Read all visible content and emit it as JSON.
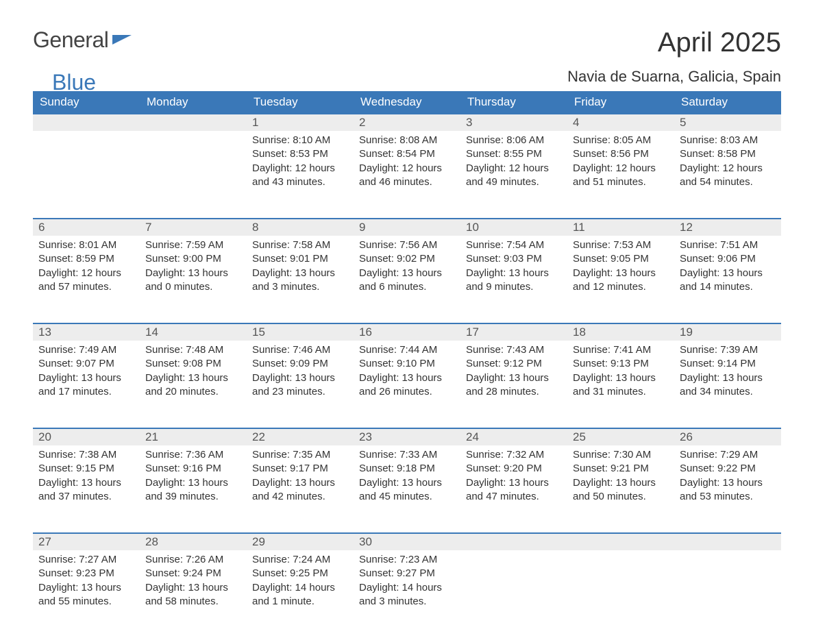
{
  "brand": {
    "part1": "General",
    "part2": "Blue"
  },
  "title": "April 2025",
  "location": "Navia de Suarna, Galicia, Spain",
  "colors": {
    "header_bg": "#3a78b8",
    "header_text": "#ffffff",
    "daynum_bg": "#ededed",
    "row_border": "#3a78b8",
    "body_text": "#333333",
    "page_bg": "#ffffff"
  },
  "weekdays": [
    "Sunday",
    "Monday",
    "Tuesday",
    "Wednesday",
    "Thursday",
    "Friday",
    "Saturday"
  ],
  "weeks": [
    [
      null,
      null,
      {
        "n": "1",
        "sunrise": "8:10 AM",
        "sunset": "8:53 PM",
        "daylight": "12 hours and 43 minutes."
      },
      {
        "n": "2",
        "sunrise": "8:08 AM",
        "sunset": "8:54 PM",
        "daylight": "12 hours and 46 minutes."
      },
      {
        "n": "3",
        "sunrise": "8:06 AM",
        "sunset": "8:55 PM",
        "daylight": "12 hours and 49 minutes."
      },
      {
        "n": "4",
        "sunrise": "8:05 AM",
        "sunset": "8:56 PM",
        "daylight": "12 hours and 51 minutes."
      },
      {
        "n": "5",
        "sunrise": "8:03 AM",
        "sunset": "8:58 PM",
        "daylight": "12 hours and 54 minutes."
      }
    ],
    [
      {
        "n": "6",
        "sunrise": "8:01 AM",
        "sunset": "8:59 PM",
        "daylight": "12 hours and 57 minutes."
      },
      {
        "n": "7",
        "sunrise": "7:59 AM",
        "sunset": "9:00 PM",
        "daylight": "13 hours and 0 minutes."
      },
      {
        "n": "8",
        "sunrise": "7:58 AM",
        "sunset": "9:01 PM",
        "daylight": "13 hours and 3 minutes."
      },
      {
        "n": "9",
        "sunrise": "7:56 AM",
        "sunset": "9:02 PM",
        "daylight": "13 hours and 6 minutes."
      },
      {
        "n": "10",
        "sunrise": "7:54 AM",
        "sunset": "9:03 PM",
        "daylight": "13 hours and 9 minutes."
      },
      {
        "n": "11",
        "sunrise": "7:53 AM",
        "sunset": "9:05 PM",
        "daylight": "13 hours and 12 minutes."
      },
      {
        "n": "12",
        "sunrise": "7:51 AM",
        "sunset": "9:06 PM",
        "daylight": "13 hours and 14 minutes."
      }
    ],
    [
      {
        "n": "13",
        "sunrise": "7:49 AM",
        "sunset": "9:07 PM",
        "daylight": "13 hours and 17 minutes."
      },
      {
        "n": "14",
        "sunrise": "7:48 AM",
        "sunset": "9:08 PM",
        "daylight": "13 hours and 20 minutes."
      },
      {
        "n": "15",
        "sunrise": "7:46 AM",
        "sunset": "9:09 PM",
        "daylight": "13 hours and 23 minutes."
      },
      {
        "n": "16",
        "sunrise": "7:44 AM",
        "sunset": "9:10 PM",
        "daylight": "13 hours and 26 minutes."
      },
      {
        "n": "17",
        "sunrise": "7:43 AM",
        "sunset": "9:12 PM",
        "daylight": "13 hours and 28 minutes."
      },
      {
        "n": "18",
        "sunrise": "7:41 AM",
        "sunset": "9:13 PM",
        "daylight": "13 hours and 31 minutes."
      },
      {
        "n": "19",
        "sunrise": "7:39 AM",
        "sunset": "9:14 PM",
        "daylight": "13 hours and 34 minutes."
      }
    ],
    [
      {
        "n": "20",
        "sunrise": "7:38 AM",
        "sunset": "9:15 PM",
        "daylight": "13 hours and 37 minutes."
      },
      {
        "n": "21",
        "sunrise": "7:36 AM",
        "sunset": "9:16 PM",
        "daylight": "13 hours and 39 minutes."
      },
      {
        "n": "22",
        "sunrise": "7:35 AM",
        "sunset": "9:17 PM",
        "daylight": "13 hours and 42 minutes."
      },
      {
        "n": "23",
        "sunrise": "7:33 AM",
        "sunset": "9:18 PM",
        "daylight": "13 hours and 45 minutes."
      },
      {
        "n": "24",
        "sunrise": "7:32 AM",
        "sunset": "9:20 PM",
        "daylight": "13 hours and 47 minutes."
      },
      {
        "n": "25",
        "sunrise": "7:30 AM",
        "sunset": "9:21 PM",
        "daylight": "13 hours and 50 minutes."
      },
      {
        "n": "26",
        "sunrise": "7:29 AM",
        "sunset": "9:22 PM",
        "daylight": "13 hours and 53 minutes."
      }
    ],
    [
      {
        "n": "27",
        "sunrise": "7:27 AM",
        "sunset": "9:23 PM",
        "daylight": "13 hours and 55 minutes."
      },
      {
        "n": "28",
        "sunrise": "7:26 AM",
        "sunset": "9:24 PM",
        "daylight": "13 hours and 58 minutes."
      },
      {
        "n": "29",
        "sunrise": "7:24 AM",
        "sunset": "9:25 PM",
        "daylight": "14 hours and 1 minute."
      },
      {
        "n": "30",
        "sunrise": "7:23 AM",
        "sunset": "9:27 PM",
        "daylight": "14 hours and 3 minutes."
      },
      null,
      null,
      null
    ]
  ],
  "labels": {
    "sunrise": "Sunrise: ",
    "sunset": "Sunset: ",
    "daylight": "Daylight: "
  }
}
